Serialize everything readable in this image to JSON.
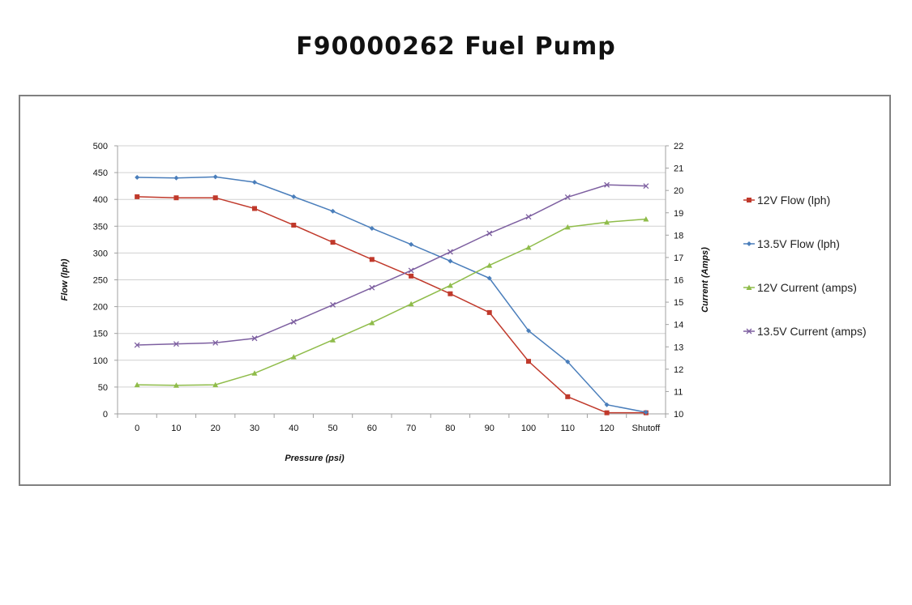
{
  "title": "F90000262 Fuel Pump",
  "chart_data": {
    "type": "line",
    "categories": [
      "0",
      "10",
      "20",
      "30",
      "40",
      "50",
      "60",
      "70",
      "80",
      "90",
      "100",
      "110",
      "120",
      "Shutoff"
    ],
    "xlabel": "Pressure (psi)",
    "ylabel": "Flow  (lph)",
    "y2label": "Current (Amps)",
    "ylim": [
      0,
      500
    ],
    "y2lim": [
      10,
      22
    ],
    "yticks": [
      "0",
      "50",
      "100",
      "150",
      "200",
      "250",
      "300",
      "350",
      "400",
      "450",
      "500"
    ],
    "y2ticks": [
      "10",
      "11",
      "12",
      "13",
      "14",
      "15",
      "16",
      "17",
      "18",
      "19",
      "20",
      "21",
      "22"
    ],
    "grid": true,
    "legend_position": "right",
    "series": [
      {
        "name": "12V Flow (lph)",
        "axis": "left",
        "color": "#c0392b",
        "marker": "square",
        "values": [
          405,
          403,
          403,
          383,
          352,
          320,
          288,
          257,
          224,
          189,
          98,
          32,
          2,
          2
        ]
      },
      {
        "name": "13.5V Flow (lph)",
        "axis": "left",
        "color": "#4a7ebb",
        "marker": "diamond",
        "values": [
          441,
          440,
          442,
          432,
          405,
          378,
          346,
          316,
          285,
          253,
          155,
          97,
          17,
          3
        ]
      },
      {
        "name": "12V Current (amps)",
        "axis": "right",
        "color": "#8fbc4a",
        "marker": "triangle",
        "values": [
          11.3,
          11.28,
          11.3,
          11.82,
          12.55,
          13.31,
          14.08,
          14.92,
          15.75,
          16.65,
          17.45,
          18.36,
          18.58,
          18.72
        ]
      },
      {
        "name": "13.5V Current (amps)",
        "axis": "right",
        "color": "#7d5fa0",
        "marker": "x",
        "values": [
          13.08,
          13.13,
          13.18,
          13.38,
          14.12,
          14.88,
          15.65,
          16.42,
          17.25,
          18.08,
          18.82,
          19.7,
          20.25,
          20.2
        ]
      }
    ]
  }
}
